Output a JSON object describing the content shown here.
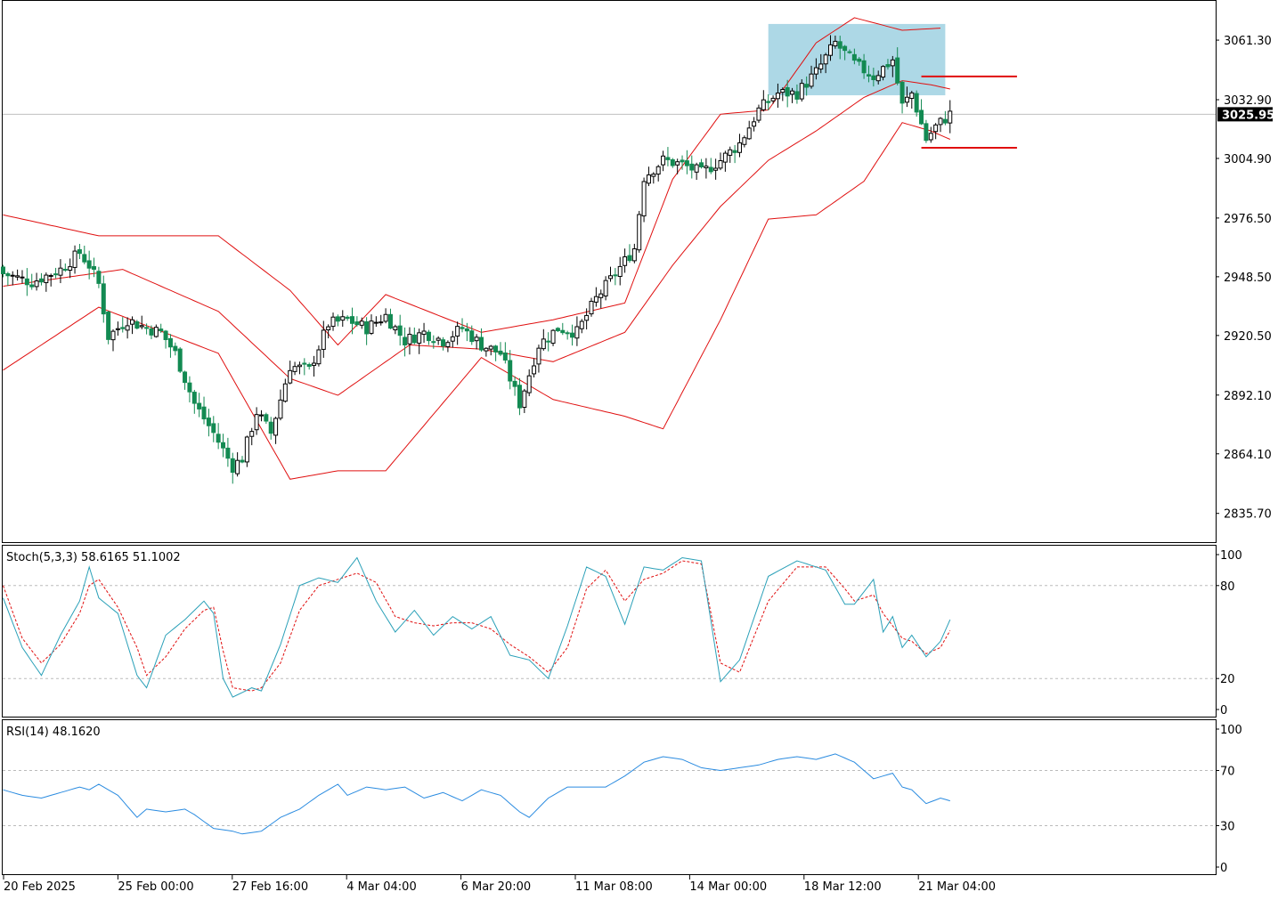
{
  "chart_data": [
    {
      "type": "candlestick",
      "ylim": [
        2822,
        3080
      ],
      "y_ticks": [
        "3061.30",
        "3032.90",
        "3004.90",
        "2976.50",
        "2948.50",
        "2920.50",
        "2892.10",
        "2864.10",
        "2835.70"
      ],
      "current_price": "3025.95",
      "x_tick_labels": [
        "20 Feb 2025",
        "25 Feb 00:00",
        "27 Feb 16:00",
        "4 Mar 04:00",
        "6 Mar 20:00",
        "11 Mar 08:00",
        "14 Mar 00:00",
        "18 Mar 12:00",
        "21 Mar 04:00"
      ],
      "close_anchors": [
        [
          0,
          2950
        ],
        [
          6,
          2946
        ],
        [
          12,
          2952
        ],
        [
          16,
          2960
        ],
        [
          18,
          2954
        ],
        [
          20,
          2945
        ],
        [
          22,
          2920
        ],
        [
          26,
          2928
        ],
        [
          30,
          2924
        ],
        [
          33,
          2922
        ],
        [
          36,
          2912
        ],
        [
          40,
          2888
        ],
        [
          44,
          2874
        ],
        [
          48,
          2858
        ],
        [
          50,
          2862
        ],
        [
          53,
          2884
        ],
        [
          56,
          2874
        ],
        [
          60,
          2906
        ],
        [
          64,
          2904
        ],
        [
          68,
          2926
        ],
        [
          72,
          2928
        ],
        [
          76,
          2924
        ],
        [
          80,
          2930
        ],
        [
          84,
          2918
        ],
        [
          88,
          2922
        ],
        [
          92,
          2918
        ],
        [
          96,
          2924
        ],
        [
          100,
          2916
        ],
        [
          104,
          2912
        ],
        [
          108,
          2888
        ],
        [
          112,
          2916
        ],
        [
          116,
          2924
        ],
        [
          120,
          2922
        ],
        [
          124,
          2938
        ],
        [
          128,
          2950
        ],
        [
          132,
          2962
        ],
        [
          134,
          2996
        ],
        [
          138,
          3004
        ],
        [
          142,
          3002
        ],
        [
          146,
          2998
        ],
        [
          150,
          3004
        ],
        [
          154,
          3012
        ],
        [
          158,
          3028
        ],
        [
          162,
          3036
        ],
        [
          166,
          3036
        ],
        [
          170,
          3046
        ],
        [
          174,
          3060
        ],
        [
          178,
          3050
        ],
        [
          182,
          3044
        ],
        [
          186,
          3052
        ],
        [
          188,
          3030
        ],
        [
          190,
          3036
        ],
        [
          193,
          3014
        ],
        [
          195,
          3020
        ],
        [
          198,
          3026
        ]
      ],
      "bollinger": {
        "upper": [
          [
            0,
            2978
          ],
          [
            20,
            2968
          ],
          [
            45,
            2968
          ],
          [
            60,
            2942
          ],
          [
            70,
            2916
          ],
          [
            80,
            2940
          ],
          [
            100,
            2922
          ],
          [
            115,
            2928
          ],
          [
            130,
            2936
          ],
          [
            140,
            2995
          ],
          [
            150,
            3026
          ],
          [
            160,
            3028
          ],
          [
            170,
            3060
          ],
          [
            178,
            3072
          ],
          [
            188,
            3066
          ],
          [
            196,
            3067
          ]
        ],
        "middle": [
          [
            0,
            2944
          ],
          [
            25,
            2952
          ],
          [
            45,
            2932
          ],
          [
            60,
            2900
          ],
          [
            70,
            2892
          ],
          [
            85,
            2916
          ],
          [
            100,
            2914
          ],
          [
            115,
            2908
          ],
          [
            130,
            2922
          ],
          [
            140,
            2954
          ],
          [
            150,
            2982
          ],
          [
            160,
            3004
          ],
          [
            170,
            3018
          ],
          [
            180,
            3034
          ],
          [
            188,
            3042
          ],
          [
            194,
            3040
          ],
          [
            198,
            3038
          ]
        ],
        "lower": [
          [
            0,
            2904
          ],
          [
            20,
            2934
          ],
          [
            45,
            2912
          ],
          [
            60,
            2852
          ],
          [
            70,
            2856
          ],
          [
            80,
            2856
          ],
          [
            100,
            2910
          ],
          [
            115,
            2890
          ],
          [
            130,
            2882
          ],
          [
            138,
            2876
          ],
          [
            150,
            2928
          ],
          [
            160,
            2976
          ],
          [
            170,
            2978
          ],
          [
            180,
            2994
          ],
          [
            188,
            3022
          ],
          [
            194,
            3018
          ],
          [
            198,
            3014
          ]
        ]
      },
      "highlight_zone": {
        "x_bars": [
          160,
          197
        ],
        "y_range": [
          3035,
          3069
        ]
      },
      "annotations": [
        {
          "type": "hline",
          "price": 3044,
          "bars": [
            192,
            212
          ]
        },
        {
          "type": "hline",
          "price": 3010,
          "bars": [
            192,
            212
          ]
        }
      ]
    },
    {
      "type": "line",
      "title": "Stoch(5,3,3) 58.6165 51.1002",
      "ylim": [
        0,
        100
      ],
      "y_ticks": [
        "100",
        "80",
        "20",
        "0"
      ],
      "levels": [
        80,
        20
      ],
      "series": [
        {
          "name": "%K",
          "anchors": [
            [
              0,
              72
            ],
            [
              4,
              40
            ],
            [
              8,
              22
            ],
            [
              12,
              48
            ],
            [
              16,
              70
            ],
            [
              18,
              92
            ],
            [
              20,
              72
            ],
            [
              24,
              62
            ],
            [
              28,
              22
            ],
            [
              30,
              14
            ],
            [
              34,
              48
            ],
            [
              38,
              58
            ],
            [
              42,
              70
            ],
            [
              44,
              62
            ],
            [
              46,
              20
            ],
            [
              48,
              8
            ],
            [
              52,
              14
            ],
            [
              54,
              12
            ],
            [
              58,
              42
            ],
            [
              62,
              80
            ],
            [
              66,
              85
            ],
            [
              70,
              82
            ],
            [
              74,
              98
            ],
            [
              78,
              70
            ],
            [
              82,
              50
            ],
            [
              86,
              64
            ],
            [
              90,
              48
            ],
            [
              94,
              60
            ],
            [
              98,
              52
            ],
            [
              102,
              60
            ],
            [
              106,
              35
            ],
            [
              110,
              32
            ],
            [
              114,
              20
            ],
            [
              118,
              54
            ],
            [
              122,
              92
            ],
            [
              126,
              86
            ],
            [
              130,
              55
            ],
            [
              134,
              92
            ],
            [
              138,
              90
            ],
            [
              142,
              98
            ],
            [
              146,
              96
            ],
            [
              150,
              18
            ],
            [
              154,
              32
            ],
            [
              160,
              86
            ],
            [
              166,
              96
            ],
            [
              172,
              90
            ],
            [
              176,
              68
            ],
            [
              178,
              68
            ],
            [
              182,
              84
            ],
            [
              184,
              50
            ],
            [
              186,
              60
            ],
            [
              188,
              40
            ],
            [
              190,
              48
            ],
            [
              193,
              34
            ],
            [
              196,
              44
            ],
            [
              198,
              58
            ]
          ]
        },
        {
          "name": "%D",
          "anchors": [
            [
              0,
              80
            ],
            [
              4,
              46
            ],
            [
              8,
              30
            ],
            [
              12,
              42
            ],
            [
              16,
              62
            ],
            [
              18,
              80
            ],
            [
              20,
              84
            ],
            [
              24,
              66
            ],
            [
              28,
              40
            ],
            [
              30,
              22
            ],
            [
              34,
              34
            ],
            [
              38,
              52
            ],
            [
              42,
              64
            ],
            [
              44,
              66
            ],
            [
              46,
              38
            ],
            [
              48,
              14
            ],
            [
              52,
              12
            ],
            [
              54,
              14
            ],
            [
              58,
              30
            ],
            [
              62,
              64
            ],
            [
              66,
              80
            ],
            [
              70,
              84
            ],
            [
              74,
              88
            ],
            [
              78,
              82
            ],
            [
              82,
              60
            ],
            [
              86,
              56
            ],
            [
              90,
              54
            ],
            [
              94,
              56
            ],
            [
              98,
              56
            ],
            [
              102,
              52
            ],
            [
              106,
              42
            ],
            [
              110,
              34
            ],
            [
              114,
              24
            ],
            [
              118,
              40
            ],
            [
              122,
              78
            ],
            [
              126,
              90
            ],
            [
              130,
              70
            ],
            [
              134,
              84
            ],
            [
              138,
              88
            ],
            [
              142,
              96
            ],
            [
              146,
              94
            ],
            [
              150,
              30
            ],
            [
              154,
              24
            ],
            [
              160,
              70
            ],
            [
              166,
              92
            ],
            [
              172,
              92
            ],
            [
              176,
              78
            ],
            [
              178,
              70
            ],
            [
              182,
              74
            ],
            [
              184,
              62
            ],
            [
              186,
              54
            ],
            [
              188,
              46
            ],
            [
              190,
              44
            ],
            [
              193,
              36
            ],
            [
              196,
              40
            ],
            [
              198,
              51
            ]
          ]
        }
      ]
    },
    {
      "type": "line",
      "title": "RSI(14) 48.1620",
      "ylim": [
        0,
        100
      ],
      "y_ticks": [
        "100",
        "70",
        "30",
        "0"
      ],
      "levels": [
        70,
        30
      ],
      "series": [
        {
          "name": "RSI",
          "anchors": [
            [
              0,
              56
            ],
            [
              4,
              52
            ],
            [
              8,
              50
            ],
            [
              12,
              54
            ],
            [
              16,
              58
            ],
            [
              18,
              56
            ],
            [
              20,
              60
            ],
            [
              24,
              52
            ],
            [
              28,
              36
            ],
            [
              30,
              42
            ],
            [
              34,
              40
            ],
            [
              38,
              42
            ],
            [
              40,
              38
            ],
            [
              44,
              28
            ],
            [
              48,
              26
            ],
            [
              50,
              24
            ],
            [
              54,
              26
            ],
            [
              58,
              36
            ],
            [
              62,
              42
            ],
            [
              66,
              52
            ],
            [
              70,
              60
            ],
            [
              72,
              52
            ],
            [
              76,
              58
            ],
            [
              80,
              56
            ],
            [
              84,
              58
            ],
            [
              88,
              50
            ],
            [
              92,
              54
            ],
            [
              96,
              48
            ],
            [
              100,
              56
            ],
            [
              104,
              52
            ],
            [
              108,
              40
            ],
            [
              110,
              36
            ],
            [
              114,
              50
            ],
            [
              118,
              58
            ],
            [
              122,
              58
            ],
            [
              126,
              58
            ],
            [
              130,
              66
            ],
            [
              134,
              76
            ],
            [
              138,
              80
            ],
            [
              142,
              78
            ],
            [
              146,
              72
            ],
            [
              150,
              70
            ],
            [
              154,
              72
            ],
            [
              158,
              74
            ],
            [
              162,
              78
            ],
            [
              166,
              80
            ],
            [
              170,
              78
            ],
            [
              174,
              82
            ],
            [
              178,
              76
            ],
            [
              182,
              64
            ],
            [
              186,
              68
            ],
            [
              188,
              58
            ],
            [
              190,
              56
            ],
            [
              193,
              46
            ],
            [
              196,
              50
            ],
            [
              198,
              48
            ]
          ]
        }
      ]
    }
  ]
}
